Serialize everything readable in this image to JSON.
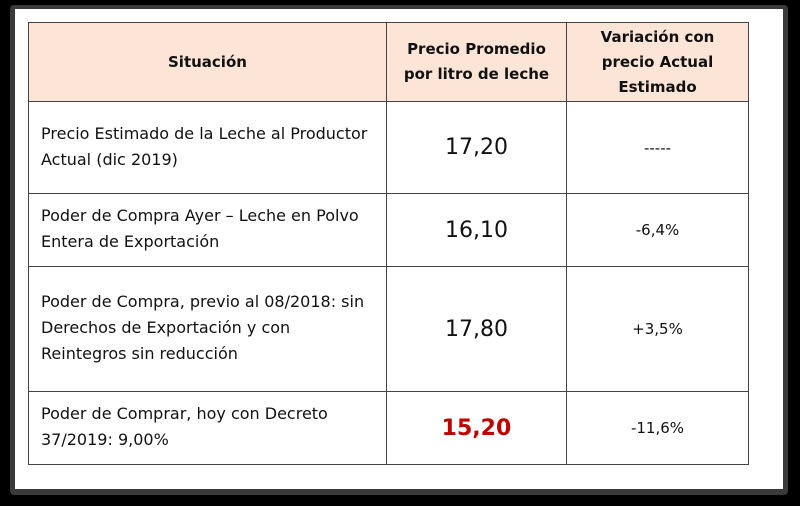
{
  "table": {
    "header": [
      "Situación",
      "Precio Promedio por litro de leche",
      "Variación con precio Actual Estimado"
    ],
    "rows": [
      [
        "Precio Estimado de la Leche al Productor Actual (dic 2019)",
        "17,20",
        "-----"
      ],
      [
        "Poder de Compra Ayer – Leche en Polvo Entera de Exportación",
        "16,10",
        "-6,4%"
      ],
      [
        "Poder de Compra, previo al 08/2018: sin Derechos de Exportación y con Reintegros sin reducción",
        "17,80",
        "+3,5%"
      ],
      [
        "Poder de Comprar, hoy con Decreto 37/2019: 9,00%",
        "15,20",
        "-11,6%"
      ]
    ],
    "highlight_row": 3,
    "highlight_color": "#c00000",
    "header_color": "#fce4d6"
  }
}
